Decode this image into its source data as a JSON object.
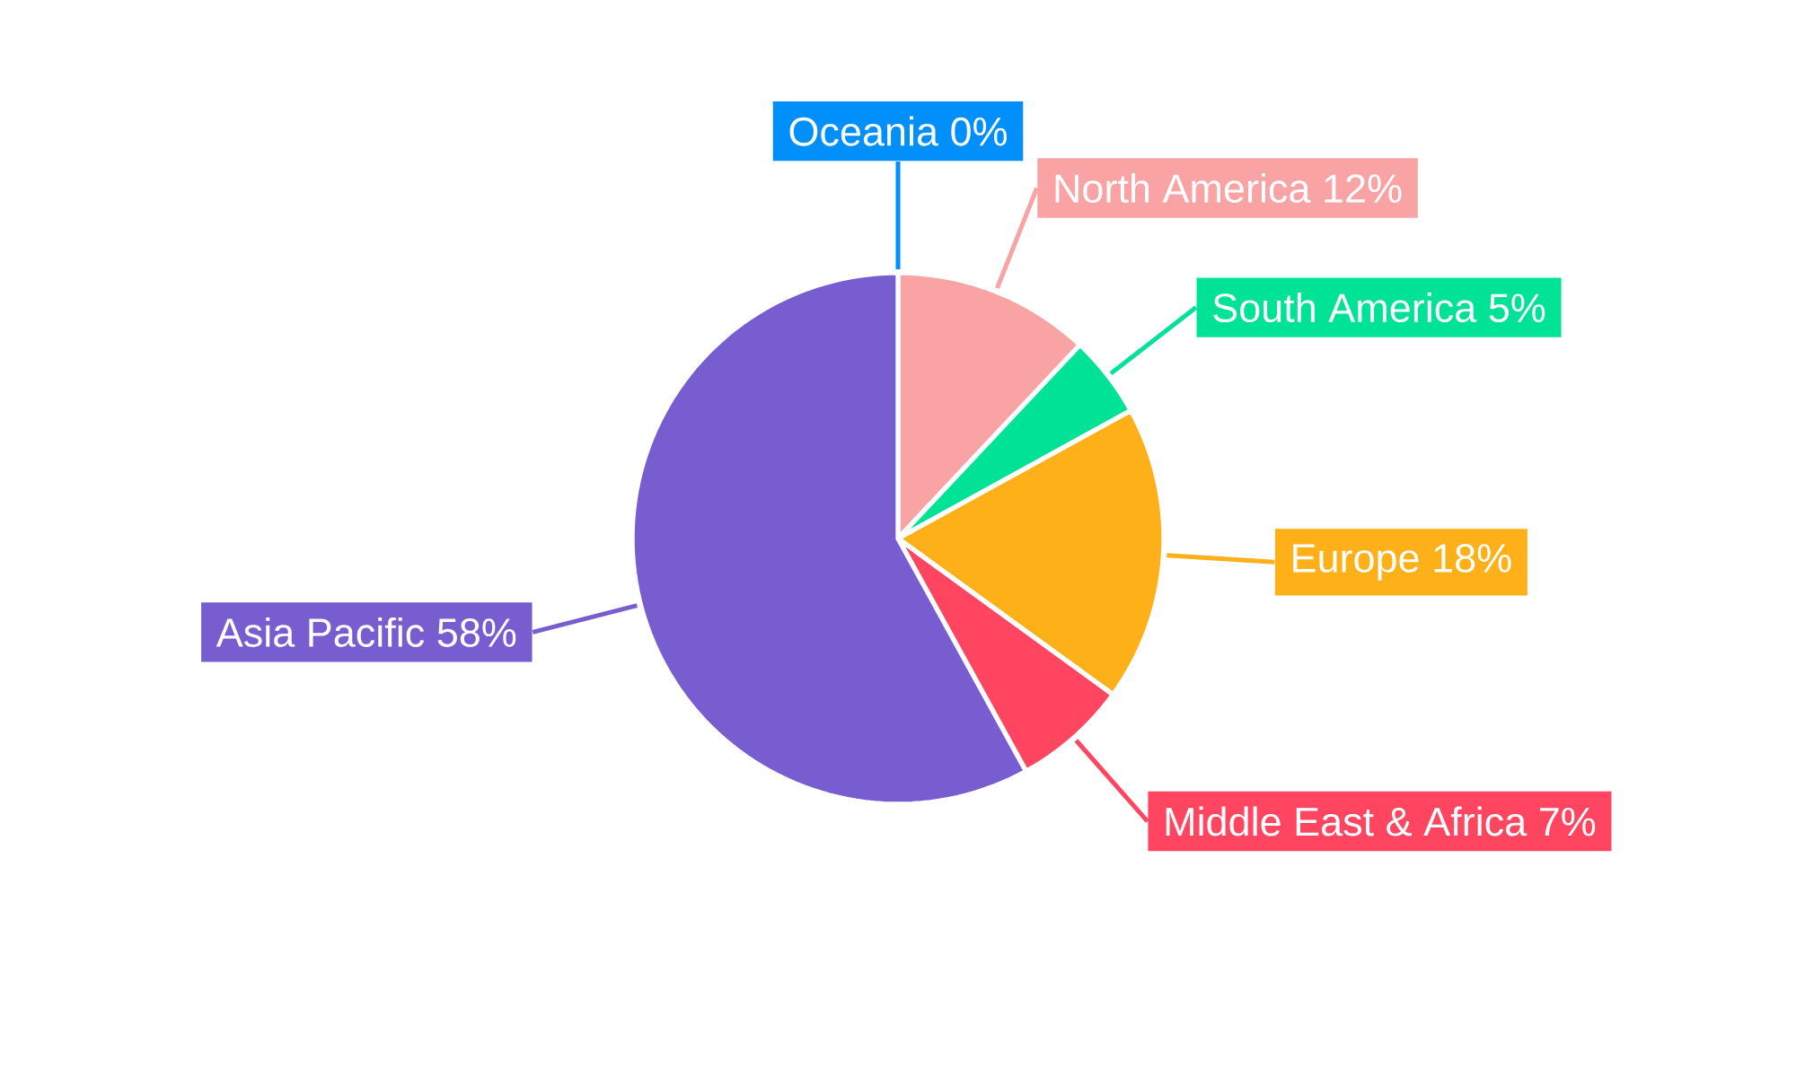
{
  "chart_data": {
    "type": "pie",
    "categories": [
      "Oceania",
      "North America",
      "South America",
      "Europe",
      "Middle East & Africa",
      "Asia Pacific"
    ],
    "values": [
      0,
      12,
      5,
      18,
      7,
      58
    ],
    "colors": [
      "#008ffb",
      "#f9a3a4",
      "#00e396",
      "#feb019",
      "#ff4560",
      "#775dd0"
    ],
    "value_labels": [
      "0%",
      "12%",
      "5%",
      "18%",
      "7%",
      "58%"
    ]
  }
}
